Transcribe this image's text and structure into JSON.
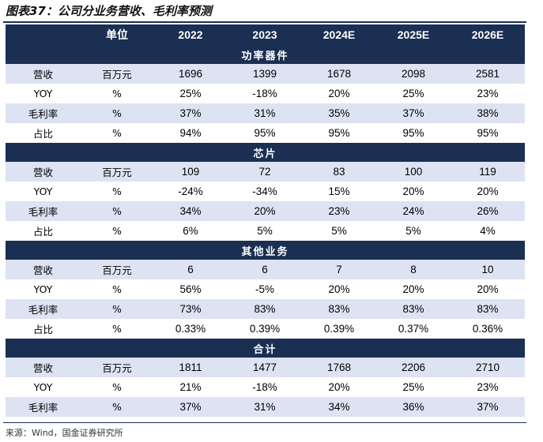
{
  "title": "图表37：公司分业务营收、毛利率预测",
  "header": {
    "unit": "单位",
    "years": [
      "2022",
      "2023",
      "2024E",
      "2025E",
      "2026E"
    ]
  },
  "sections": [
    {
      "name": "功率器件",
      "rows": [
        {
          "label": "营收",
          "unit": "百万元",
          "values": [
            "1696",
            "1399",
            "1678",
            "2098",
            "2581"
          ]
        },
        {
          "label": "YOY",
          "unit": "%",
          "values": [
            "25%",
            "-18%",
            "20%",
            "25%",
            "23%"
          ]
        },
        {
          "label": "毛利率",
          "unit": "%",
          "values": [
            "37%",
            "31%",
            "35%",
            "37%",
            "38%"
          ]
        },
        {
          "label": "占比",
          "unit": "%",
          "values": [
            "94%",
            "95%",
            "95%",
            "95%",
            "95%"
          ]
        }
      ]
    },
    {
      "name": "芯片",
      "rows": [
        {
          "label": "营收",
          "unit": "百万元",
          "values": [
            "109",
            "72",
            "83",
            "100",
            "119"
          ]
        },
        {
          "label": "YOY",
          "unit": "%",
          "values": [
            "-24%",
            "-34%",
            "15%",
            "20%",
            "20%"
          ]
        },
        {
          "label": "毛利率",
          "unit": "%",
          "values": [
            "34%",
            "20%",
            "23%",
            "24%",
            "26%"
          ]
        },
        {
          "label": "占比",
          "unit": "%",
          "values": [
            "6%",
            "5%",
            "5%",
            "5%",
            "4%"
          ]
        }
      ]
    },
    {
      "name": "其他业务",
      "rows": [
        {
          "label": "营收",
          "unit": "百万元",
          "values": [
            "6",
            "6",
            "7",
            "8",
            "10"
          ]
        },
        {
          "label": "YOY",
          "unit": "%",
          "values": [
            "56%",
            "-5%",
            "20%",
            "20%",
            "20%"
          ]
        },
        {
          "label": "毛利率",
          "unit": "%",
          "values": [
            "73%",
            "83%",
            "83%",
            "83%",
            "83%"
          ]
        },
        {
          "label": "占比",
          "unit": "%",
          "values": [
            "0.33%",
            "0.39%",
            "0.39%",
            "0.37%",
            "0.36%"
          ]
        }
      ]
    },
    {
      "name": "合计",
      "rows": [
        {
          "label": "营收",
          "unit": "百万元",
          "values": [
            "1811",
            "1477",
            "1768",
            "2206",
            "2710"
          ]
        },
        {
          "label": "YOY",
          "unit": "%",
          "values": [
            "21%",
            "-18%",
            "20%",
            "25%",
            "23%"
          ]
        },
        {
          "label": "毛利率",
          "unit": "%",
          "values": [
            "37%",
            "31%",
            "34%",
            "36%",
            "37%"
          ]
        }
      ]
    }
  ],
  "source": "来源：Wind，国金证券研究所",
  "colors": {
    "header_bg": "#1a2f52",
    "band_bg": "#dde3f2"
  }
}
